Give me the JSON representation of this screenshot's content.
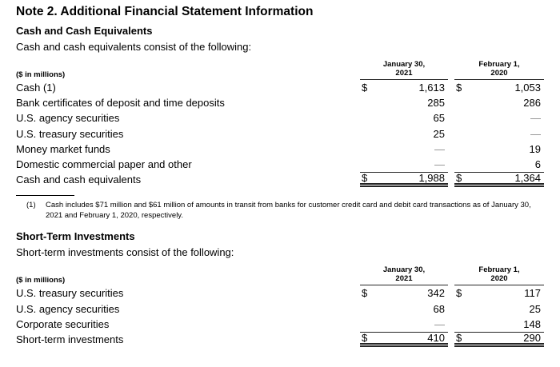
{
  "title": "Note 2. Additional Financial Statement Information",
  "cash_section": {
    "heading": "Cash and Cash Equivalents",
    "intro": "Cash and cash equivalents consist of the following:",
    "table": {
      "unit_label": "($ in millions)",
      "columns": [
        {
          "line1": "January 30,",
          "line2": "2021"
        },
        {
          "line1": "February 1,",
          "line2": "2020"
        }
      ],
      "rows": [
        {
          "label": "Cash (1)",
          "d1": "$",
          "v1": "1,613",
          "d2": "$",
          "v2": "1,053"
        },
        {
          "label": "Bank certificates of deposit and time deposits",
          "v1": "285",
          "v2": "286"
        },
        {
          "label": "U.S. agency securities",
          "v1": "65",
          "v2": "—"
        },
        {
          "label": "U.S. treasury securities",
          "v1": "25",
          "v2": "—"
        },
        {
          "label": "Money market funds",
          "v1": "—",
          "v2": "19"
        },
        {
          "label": "Domestic commercial paper and other",
          "v1": "—",
          "v2": "6"
        },
        {
          "label": "Cash and cash equivalents",
          "d1": "$",
          "v1": "1,988",
          "d2": "$",
          "v2": "1,364"
        }
      ]
    },
    "footnote": {
      "marker": "(1)",
      "text": "Cash includes $71 million and $61 million of amounts in transit from banks for customer credit card and debit card transactions as of January 30, 2021 and February 1, 2020, respectively."
    }
  },
  "sti_section": {
    "heading": "Short-Term Investments",
    "intro": "Short-term investments consist of the following:",
    "table": {
      "unit_label": "($ in millions)",
      "columns": [
        {
          "line1": "January 30,",
          "line2": "2021"
        },
        {
          "line1": "February 1,",
          "line2": "2020"
        }
      ],
      "rows": [
        {
          "label": "U.S. treasury securities",
          "d1": "$",
          "v1": "342",
          "d2": "$",
          "v2": "117"
        },
        {
          "label": "U.S. agency securities",
          "v1": "68",
          "v2": "25"
        },
        {
          "label": "Corporate securities",
          "v1": "—",
          "v2": "148"
        },
        {
          "label": "Short-term investments",
          "d1": "$",
          "v1": "410",
          "d2": "$",
          "v2": "290"
        }
      ]
    }
  }
}
